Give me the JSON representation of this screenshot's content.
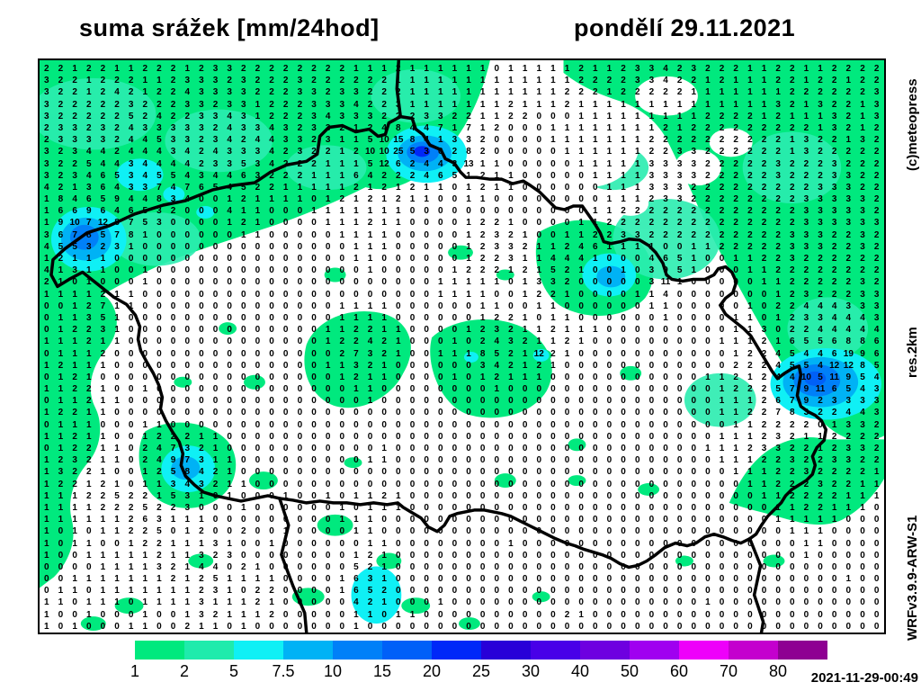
{
  "title": {
    "left": "suma srážek [mm/24hod]",
    "right": "pondělí 29.11.2021"
  },
  "side": {
    "copyright": "(c)meteopress",
    "resolution": "res.2km",
    "model": "WRFv3.9.9-ARW-S1"
  },
  "footer": {
    "timestamp": "2021-11-29-00:49"
  },
  "colorbar": {
    "unit": "mm/24hod",
    "values": [
      "1",
      "2",
      "5",
      "7.5",
      "10",
      "15",
      "20",
      "25",
      "30",
      "40",
      "50",
      "60",
      "70",
      "80"
    ],
    "colors": [
      "#00E97E",
      "#1FEBAC",
      "#0FF0F5",
      "#00B2F5",
      "#0080F8",
      "#0060F8",
      "#0028F8",
      "#2800D8",
      "#4800E8",
      "#6E00E0",
      "#A000F0",
      "#EE00FA",
      "#C400CE",
      "#8E0092"
    ]
  },
  "map": {
    "cols": 60,
    "rows": 48,
    "max_value": 25,
    "values": [
      "2 2 1 2 2 1 1 2 2 2 1 2 3 3 2 2 2 2 2 2 2 2 1 1 1 2 1 1 1 1 1 1 0 1 1 1 1 1 2 1 1 2 3 3 4 2 3 2 2 2 1 1 2 2 1 1 2 2 2 2",
      "3 2 2 1 2 2 2 1 1 2 3 3 3 2 3 2 2 2 3 2 2 2 2 2 2 1 1 1 1 1 1 1 1 1 1 1 1 1 2 2 2 2 3 3 4 2 2 1 2 1 1 1 2 2 1 2 2 1 2 2",
      "3 2 2 1 2 4 2 1 2 2 4 3 3 3 3 2 2 2 3 3 2 3 3 2 2 2 1 1 1 1 1 1 1 1 1 1 1 2 2 2 1 2 2 2 2 2 1 1 1 1 1 1 1 2 2 2 2 2 2 3",
      "3 2 2 2 2 2 3 2 2 2 3 3 2 3 3 1 2 2 2 3 3 3 4 2 2 3 1 1 1 1 1 1 1 2 1 1 1 2 1 1 1 1 1 1 1 1 1 1 1 1 1 1 3 2 1 3 2 2 1 3",
      "3 2 2 2 2 2 5 2 4 2 2 3 3 4 3 1 2 2 2 3 4 3 3 3 2 2 2 3 3 2 2 1 1 2 2 0 0 0 1 1 1 1 1 1 1 1 1 2 2 2 2 1 2 1 1 1 3 2 1 3",
      "2 3 3 2 3 2 4 3 3 3 3 3 2 4 3 3 4 3 2 3 3 2 1 2 4 8 4 4 7 1 7 1 2 0 0 0 1 1 1 1 1 1 1 1 2 1 2 2 2 2 2 2 2 2 2 1 3 2 1 2",
      "2 3 3 3 3 2 4 4 5 3 3 2 3 4 2 4 4 3 3 2 3 1 1 5 10 15 8 4 1 3 3 2 0 0 0 0 1 1 1 1 1 1 1 2 2 2 2 2 2 2 2 2 2 1 3 2 2 1 3 2",
      "3 2 3 4 4 2 4 4 4 3 4 2 4 3 3 3 4 2 3 2 2 1 2 10 10 25 5 3 0 2 8 2 0 0 0 0 0 1 1 1 1 1 1 2 2 3 3 2 2 2 2 2 2 1 3 2 2 2 2 2",
      "3 2 2 5 4 4 3 4 4 4 4 2 3 3 5 3 4 2 2 2 1 1 1 5 12 6 2 4 4 3 13 1 1 0 0 0 0 0 1 1 1 1 1 3 3 3 3 2 2 2 2 2 3 2 2 2 3 2 2 2",
      "3 2 3 4 6 5 3 4 5 5 4 3 4 4 6 3 2 2 2 1 1 1 6 4 2 2 2 4 6 5 1 2 1 1 0 0 0 0 0 1 1 1 1 3 3 3 3 2 2 2 2 2 3 2 2 2 3 3 2 2",
      "4 2 1 3 6 4 3 3 7 4 7 6 5 4 5 2 2 1 1 1 1 1 2 1 2 1 2 1 1 0 1 2 1 1 0 0 0 0 0 0 1 1 1 3 3 3 2 2 2 2 2 2 2 2 2 3 3 3 2 2",
      "1 8 4 6 5 9 4 4 8 3 4 0 0 1 2 1 1 1 1 0 1 2 1 2 1 2 1 1 0 0 1 1 0 0 0 0 0 0 0 0 1 1 1 2 3 3 2 2 2 2 2 2 2 2 3 3 3 3 3 2",
      "1 6 6 9 6 4 6 5 3 2 0 0 0 4 1 1 0 0 0 1 1 1 1 1 1 1 0 0 0 0 0 0 0 0 0 0 0 0 0 1 1 2 2 2 2 2 2 2 2 2 2 2 2 2 3 3 3 3 3 2",
      "1 9 10 7 12 8 7 5 3 0 0 0 0 1 2 1 0 0 0 0 1 1 1 2 1 1 0 0 0 0 1 2 2 1 0 0 0 0 1 1 2 2 2 2 2 2 2 2 2 2 2 2 2 2 3 3 3 3 3 3",
      "3 6 7 8 5 7 8 1 0 0 0 0 0 0 1 1 0 0 0 0 0 1 1 1 1 0 0 0 0 0 1 2 3 2 1 0 0 1 1 2 2 3 3 2 2 2 2 2 2 2 2 2 2 3 3 3 2 2 3 2",
      "4 5 5 3 2 3 1 0 0 0 0 0 0 0 0 0 0 0 0 0 0 0 1 1 1 0 0 0 0 0 1 2 3 3 2 1 1 2 4 6 1 1 1 1 0 0 1 1 2 2 2 2 2 3 3 3 2 2 3 2",
      "1 2 1 1 1 0 0 0 0 0 0 0 0 0 0 0 0 0 0 0 0 0 1 1 0 0 0 0 0 0 1 2 2 3 1 1 4 4 4 1 0 0 0 4 6 5 1 0 0 1 1 2 2 3 2 2 2 2 2 2",
      "4 1 3 1 1 0 0 1 0 0 0 0 0 0 0 0 0 0 0 0 0 0 0 1 0 0 0 0 0 1 2 2 2 1 2 1 5 2 1 0 0 1 0 3 9 5 1 0 0 0 1 1 2 2 2 2 2 2 2 2",
      "2 1 0 1 0 0 0 1 0 0 0 0 0 0 0 0 0 0 0 0 0 0 0 0 0 0 0 0 1 1 1 1 1 0 1 3 3 2 0 0 0 0 0 3 11 1 0 0 0 0 0 1 1 2 2 2 2 2 3 2",
      "1 1 1 1 2 1 1 0 0 0 0 0 0 0 0 0 0 0 0 0 0 0 0 0 0 0 0 0 1 1 1 1 0 0 1 2 2 1 0 0 0 0 1 1 4 0 0 0 0 0 0 0 1 2 3 2 2 2 3 3",
      "0 0 1 2 7 1 1 0 0 0 0 0 0 0 0 0 0 0 0 0 0 1 1 1 1 0 0 0 0 0 0 1 1 0 0 1 1 0 0 0 0 0 0 1 1 0 0 0 0 0 1 0 2 2 4 4 4 3 3 3",
      "0 1 1 3 5 1 0 0 0 0 0 0 0 0 0 0 0 0 0 0 0 1 1 1 1 0 0 0 0 0 0 1 2 2 1 0 1 1 0 0 0 0 0 0 1 0 0 0 0 1 1 0 1 2 3 3 4 4 4 3",
      "0 1 2 2 3 1 0 0 0 0 0 0 0 0 0 0 0 0 0 0 1 1 2 2 1 1 0 0 0 0 1 2 3 2 1 1 2 1 1 1 0 0 0 0 0 0 0 0 0 1 1 3 0 2 2 4 4 4 4 4",
      "1 1 1 2 1 1 0 0 0 0 0 0 0 0 0 0 0 0 0 0 1 2 2 4 2 1 0 0 0 1 0 2 4 3 2 1 1 2 1 0 0 0 0 0 0 0 0 0 1 1 1 2 1 6 5 5 6 8 8 6",
      "0 1 1 1 2 0 0 0 0 0 0 0 0 0 0 0 0 0 0 0 0 2 7 3 2 1 0 0 1 1 1 8 5 2 1 12 2 1 0 0 0 0 0 0 0 0 0 0 0 1 2 2 4 5 4 4 6 19 9 6",
      "1 2 1 1 1 0 0 0 0 0 0 0 0 0 0 0 0 0 0 0 1 1 3 2 1 0 0 0 0 0 0 3 4 2 1 2 1 0 0 0 0 0 0 0 0 0 0 0 0 2 2 2 4 5 5 4 12 12 8 5",
      "0 1 2 1 0 0 0 0 0 0 0 0 0 0 0 0 0 0 0 0 0 1 2 1 1 0 0 0 0 1 0 1 2 1 1 1 0 0 0 0 0 0 0 0 0 0 0 1 1 2 1 2 4 4 10 5 11 9 5 4",
      "1 1 2 2 1 0 0 1 0 0 0 0 0 0 0 0 0 0 0 0 0 0 1 1 0 0 0 0 0 0 0 0 1 0 0 0 0 0 0 0 0 0 0 0 0 0 0 0 1 2 2 2 5 7 9 11 6 5 4 3",
      "0 1 1 2 1 1 0 0 0 0 0 0 0 0 0 0 0 0 0 0 0 0 0 1 0 0 0 0 0 0 0 0 0 0 0 0 0 0 0 0 0 0 0 0 0 0 0 0 1 1 1 2 6 7 9 2 3 3 3 3",
      "1 2 2 1 1 0 0 0 0 0 0 0 0 0 0 0 0 0 0 0 0 0 0 0 0 0 0 0 0 0 0 0 0 0 0 0 0 0 0 0 0 0 0 0 0 0 0 0 1 1 2 2 7 8 3 2 2 4 4 3",
      "0 1 1 1 0 0 0 1 1 0 0 0 0 0 0 0 0 0 0 0 0 0 0 0 0 0 0 0 0 0 0 0 0 0 0 0 0 0 0 0 0 0 0 0 0 0 0 0 0 1 1 2 2 2 2 0 1 3 3 2",
      "1 1 2 1 1 0 0 1 2 2 2 1 1 0 0 0 0 0 0 0 0 0 0 0 0 0 0 0 0 0 0 0 0 0 0 0 0 0 0 0 0 0 0 0 0 0 0 0 1 1 1 2 3 2 1 1 2 2 2 2",
      "0 1 2 2 1 1 0 2 4 7 3 2 1 0 0 0 0 0 0 0 0 0 0 0 1 0 0 0 0 0 0 0 0 0 0 0 0 0 0 0 0 0 0 0 0 0 0 1 1 1 2 3 3 2 2 1 2 3 3 2",
      "1 2 3 2 1 1 0 2 4 9 7 3 1 1 0 0 0 0 0 0 0 0 0 1 1 0 0 0 0 0 0 0 0 0 0 0 0 0 0 0 0 0 0 0 0 0 0 0 1 1 1 2 2 3 2 2 3 3 2 2",
      "1 3 2 2 1 0 0 1 2 5 8 4 2 1 0 0 0 0 0 0 0 0 0 0 0 0 0 0 0 0 0 0 0 0 0 0 0 0 0 0 0 0 0 0 0 0 0 0 0 1 1 1 2 2 3 2 2 2 2 1",
      "1 2 2 1 2 1 0 1 1 3 4 3 2 1 1 0 0 0 0 0 0 0 0 0 0 0 0 0 0 0 0 0 0 0 0 0 0 0 0 0 0 0 0 0 0 0 0 0 0 0 1 1 2 2 2 3 2 2 1 1",
      "1 1 1 2 2 5 2 2 1 5 3 1 0 1 0 0 0 1 0 0 1 0 1 1 2 1 0 0 0 0 0 0 0 0 0 0 0 0 0 0 0 0 0 0 0 0 0 0 0 0 0 1 1 2 2 2 2 1 1 1",
      "1 1 1 1 2 2 2 5 2 2 3 0 0 0 1 0 0 0 0 0 0 1 0 1 1 1 0 0 0 0 0 0 0 0 0 0 0 0 0 0 0 0 0 0 0 0 0 0 0 0 0 0 1 1 2 2 1 1 1 0",
      "1 1 1 1 1 1 2 6 3 1 1 1 0 0 0 0 0 0 0 0 0 1 1 1 0 0 0 0 0 0 0 0 0 0 0 0 0 0 0 0 0 0 0 0 0 0 0 0 0 0 0 0 1 1 1 1 1 0 0 0",
      "1 0 1 0 1 1 2 2 5 0 1 2 0 0 2 0 0 1 0 0 0 0 1 1 0 0 0 0 0 0 0 0 0 0 0 0 0 0 0 0 0 0 0 0 0 0 0 0 0 0 0 0 0 1 1 1 0 0 0 0",
      "1 0 1 1 0 0 1 2 2 1 1 1 3 1 0 0 1 0 0 0 0 0 0 1 1 0 0 0 0 0 0 0 0 1 0 0 0 0 0 0 0 0 0 0 0 0 0 0 0 0 0 0 0 0 1 1 0 0 0 0",
      "1 0 0 1 1 1 1 1 2 1 1 3 2 3 0 0 0 0 0 0 0 0 1 2 1 0 0 0 0 0 0 0 0 0 0 0 0 0 0 0 0 0 0 0 0 0 0 0 0 0 0 0 0 0 1 0 0 0 0 0",
      "0 0 0 0 1 1 1 1 3 2 1 4 4 0 2 1 0 0 0 0 0 0 5 2 1 0 0 0 0 0 0 0 0 0 0 0 0 0 0 0 0 0 0 0 0 0 0 0 0 0 0 0 0 0 0 0 0 0 0 0",
      "0 0 1 1 1 1 1 1 1 2 1 2 5 1 1 1 1 0 0 0 0 1 6 3 1 0 0 0 0 0 0 0 0 0 0 0 0 0 0 0 0 0 0 0 0 0 0 0 0 0 0 0 0 0 0 0 0 1 0 0",
      "0 1 1 0 1 1 1 1 1 1 1 2 3 1 0 2 2 0 0 0 0 1 6 5 2 0 0 0 0 0 0 0 0 0 0 0 0 0 0 0 0 0 0 0 0 0 0 0 0 0 0 0 0 0 0 0 0 0 0 0",
      "1 1 0 1 1 1 0 1 1 1 1 3 1 1 1 2 1 0 0 0 0 0 4 2 1 0 0 0 1 0 0 0 0 0 0 0 0 0 0 0 0 0 0 0 0 0 0 1 0 0 0 0 0 0 0 0 0 0 0 0",
      "1 0 0 1 0 0 0 1 0 0 1 3 2 1 1 1 2 0 0 0 0 0 1 1 0 1 1 0 0 0 0 0 0 0 0 0 0 2 1 0 0 0 0 0 0 0 0 0 0 0 0 0 0 0 0 0 0 0 0 0",
      "1 0 1 0 0 0 1 1 0 0 2 1 1 0 1 0 0 0 0 0 0 0 1 0 0 0 0 0 0 0 0 0 0 0 0 0 0 0 0 0 0 0 0 0 0 0 0 0 0 0 0 0 0 0 0 0 0 0 0 0"
    ]
  }
}
